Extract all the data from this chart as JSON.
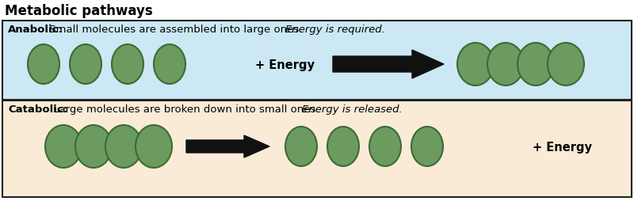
{
  "title": "Metabolic pathways",
  "title_fontsize": 12,
  "anabolic_bg": "#cce8f4",
  "catabolic_bg": "#faebd7",
  "border_color": "#222222",
  "circle_color": "#6b9b5e",
  "circle_edge": "#3d6b35",
  "arrow_color": "#111111",
  "anabolic_label_bold": "Anabolic:",
  "anabolic_label_normal": " Small molecules are assembled into large ones. ",
  "anabolic_label_italic": "Energy is required.",
  "catabolic_label_bold": "Catabolic:",
  "catabolic_label_normal": " Large molecules are broken down into small ones. ",
  "catabolic_label_italic": "Energy is released.",
  "energy_label": "+ Energy",
  "label_fontsize": 9.5,
  "energy_fontsize": 10.5
}
